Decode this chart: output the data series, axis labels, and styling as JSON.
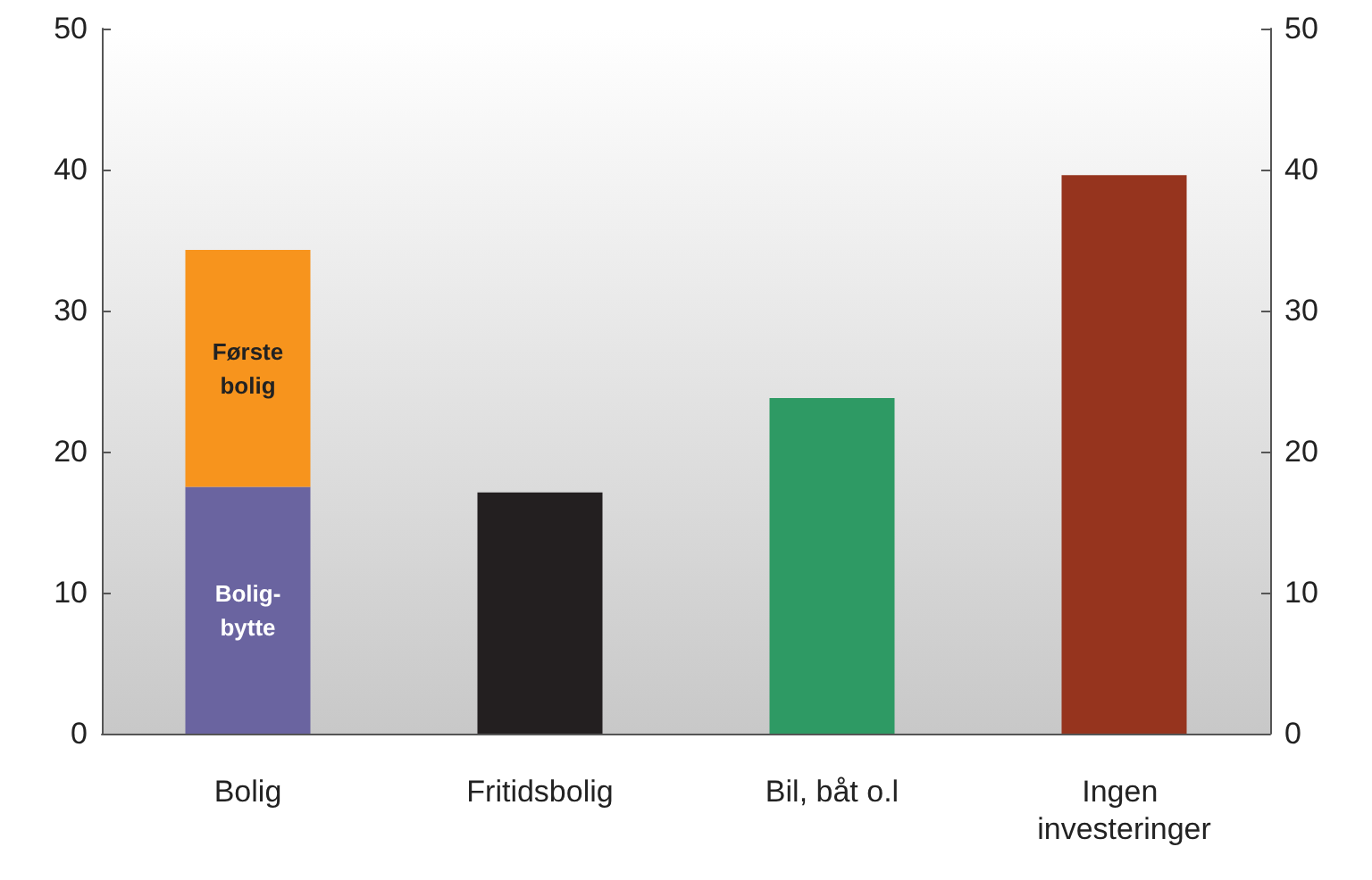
{
  "chart_data": {
    "type": "bar",
    "stacked": true,
    "categories": [
      "Bolig",
      "Fritidsbolig",
      "Bil, båt o.l",
      "Ingen investeringer"
    ],
    "series": [
      {
        "name": "Bolig-bytte",
        "color": "#6a64a0",
        "values": [
          17.5,
          null,
          null,
          null
        ]
      },
      {
        "name": "Første bolig",
        "color": "#f7941d",
        "values": [
          16.8,
          null,
          null,
          null
        ]
      },
      {
        "colors": [
          "#231f20",
          "#231f20",
          "#2e9a64",
          "#96341e"
        ],
        "values": [
          null,
          17.1,
          23.8,
          39.6
        ]
      }
    ],
    "ylim": [
      0,
      50
    ],
    "yticks": [
      0,
      10,
      20,
      30,
      40,
      50
    ],
    "y2lim": [
      0,
      50
    ],
    "y2ticks": [
      0,
      10,
      20,
      30,
      40,
      50
    ],
    "grid": false,
    "legend": false
  }
}
